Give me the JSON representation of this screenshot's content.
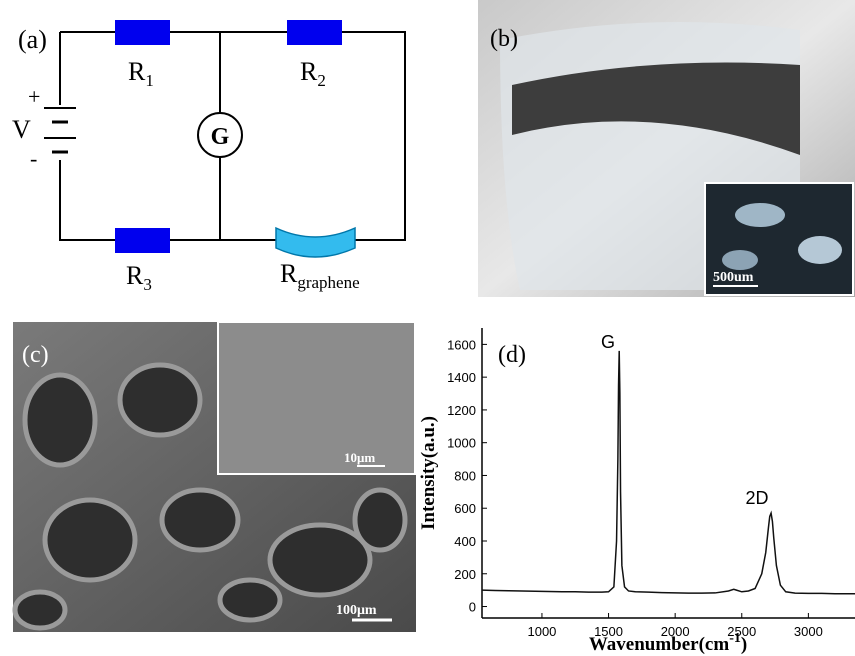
{
  "panel_labels": [
    "(a)",
    "(b)",
    "(c)",
    "(d)"
  ],
  "circuit": {
    "resistors": [
      {
        "base": "R",
        "sub": "1"
      },
      {
        "base": "R",
        "sub": "2"
      },
      {
        "base": "R",
        "sub": "3"
      },
      {
        "base": "R",
        "sub": "graphene"
      }
    ],
    "source": {
      "label": "V",
      "plus": "+",
      "minus": "-"
    },
    "galvanometer": "G"
  },
  "photo": {
    "scale_bar": "500um"
  },
  "sem": {
    "scale_bar": "100μm",
    "inset_scale_bar": "10μm"
  },
  "chart_data": {
    "type": "line",
    "ylabel": "Intensity(a.u.)",
    "xlabel": {
      "base": "Wavenumber(cm",
      "sup": "-1",
      "tail": ")"
    },
    "annotations": [
      "G",
      "2D"
    ],
    "color": "#111111",
    "x": [
      550,
      650,
      750,
      850,
      950,
      1050,
      1150,
      1250,
      1350,
      1450,
      1500,
      1540,
      1560,
      1570,
      1575,
      1580,
      1585,
      1590,
      1600,
      1620,
      1650,
      1700,
      1800,
      1900,
      2000,
      2100,
      2200,
      2300,
      2400,
      2440,
      2460,
      2500,
      2550,
      2600,
      2650,
      2680,
      2700,
      2710,
      2720,
      2730,
      2740,
      2760,
      2790,
      2830,
      2900,
      3000,
      3100,
      3200,
      3300,
      3350
    ],
    "values": [
      100,
      98,
      96,
      95,
      93,
      92,
      90,
      90,
      88,
      88,
      90,
      120,
      400,
      900,
      1350,
      1560,
      1300,
      700,
      250,
      120,
      95,
      90,
      88,
      85,
      83,
      82,
      82,
      83,
      95,
      105,
      100,
      90,
      95,
      110,
      200,
      330,
      480,
      550,
      570,
      520,
      420,
      250,
      130,
      90,
      82,
      80,
      80,
      78,
      78,
      78
    ],
    "xlim": [
      550,
      3350
    ],
    "ylim": [
      -70,
      1700
    ],
    "xticks": [
      1000,
      1500,
      2000,
      2500,
      3000
    ],
    "yticks": [
      0,
      200,
      400,
      600,
      800,
      1000,
      1200,
      1400,
      1600
    ]
  }
}
